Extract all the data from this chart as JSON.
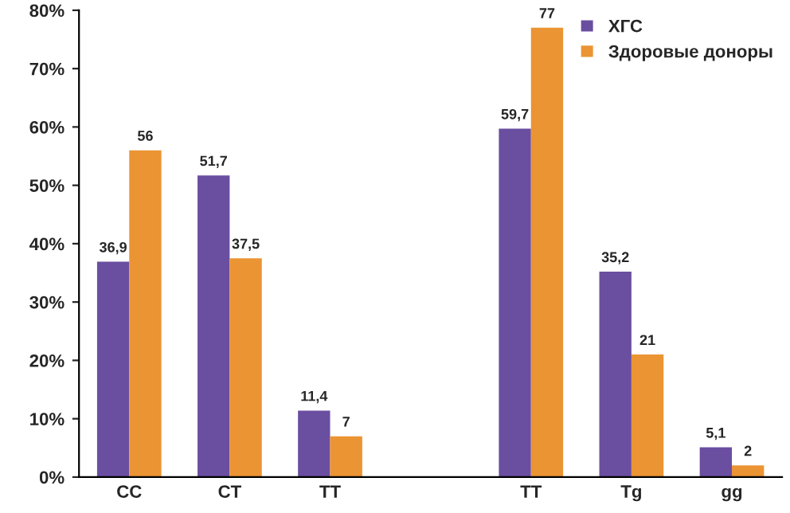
{
  "chart_data": {
    "type": "bar",
    "categories": [
      "CC",
      "CT",
      "TT",
      null,
      "TT",
      "Tg",
      "gg"
    ],
    "series": [
      {
        "name": "ХГС",
        "color": "#6a4ea0",
        "values": [
          36.9,
          51.7,
          11.4,
          null,
          59.7,
          35.2,
          5.1
        ],
        "value_labels": [
          "36,9",
          "51,7",
          "11,4",
          null,
          "59,7",
          "35,2",
          "5,1"
        ]
      },
      {
        "name": "Здоровые доноры",
        "color": "#eb9434",
        "values": [
          56,
          37.5,
          7,
          null,
          77,
          21,
          2
        ],
        "value_labels": [
          "56",
          "37,5",
          "7",
          null,
          "77",
          "21",
          "2"
        ]
      }
    ],
    "ylim": [
      0,
      80
    ],
    "yticks": [
      {
        "value": 0,
        "label": "0%"
      },
      {
        "value": 10,
        "label": "10%"
      },
      {
        "value": 20,
        "label": "20%"
      },
      {
        "value": 30,
        "label": "30%"
      },
      {
        "value": 40,
        "label": "40%"
      },
      {
        "value": 50,
        "label": "50%"
      },
      {
        "value": 60,
        "label": "60%"
      },
      {
        "value": 70,
        "label": "70%"
      },
      {
        "value": 80,
        "label": "80%"
      }
    ],
    "grid": false,
    "legend": "top right"
  }
}
